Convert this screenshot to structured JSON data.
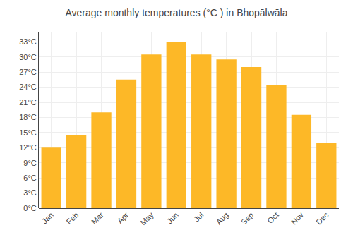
{
  "chart_data": {
    "type": "bar",
    "title": "Average monthly temperatures (°C ) in Bhopālwāla",
    "categories": [
      "Jan",
      "Feb",
      "Mar",
      "Apr",
      "May",
      "Jun",
      "Jul",
      "Aug",
      "Sep",
      "Oct",
      "Nov",
      "Dec"
    ],
    "values": [
      12,
      14.5,
      19,
      25.5,
      30.5,
      33,
      30.5,
      29.5,
      28,
      24.5,
      18.5,
      13
    ],
    "color": "#FDB827",
    "ylim": [
      0,
      35
    ],
    "yticks": [
      {
        "value": 0,
        "label": "0°C"
      },
      {
        "value": 3,
        "label": "3°C"
      },
      {
        "value": 6,
        "label": "6°C"
      },
      {
        "value": 9,
        "label": "9°C"
      },
      {
        "value": 12,
        "label": "12°C"
      },
      {
        "value": 15,
        "label": "15°C"
      },
      {
        "value": 18,
        "label": "18°C"
      },
      {
        "value": 21,
        "label": "21°C"
      },
      {
        "value": 24,
        "label": "24°C"
      },
      {
        "value": 27,
        "label": "27°C"
      },
      {
        "value": 30,
        "label": "30°C"
      },
      {
        "value": 33,
        "label": "33°C"
      }
    ],
    "grid": true
  }
}
